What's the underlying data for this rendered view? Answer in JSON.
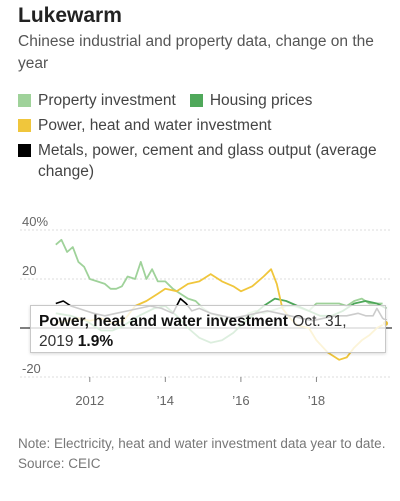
{
  "header": {
    "title": "Lukewarm",
    "subtitle": "Chinese industrial and property data, change on the year"
  },
  "legend": [
    {
      "label": "Property investment",
      "color": "#9fd29a"
    },
    {
      "label": "Housing prices",
      "color": "#4fa85a"
    },
    {
      "label": "Power, heat and water investment",
      "color": "#f0c63c"
    },
    {
      "label": "Metals, power, cement and glass output (average change)",
      "color": "#000000"
    }
  ],
  "tooltip": {
    "series": "Power, heat and water investment",
    "date": "Oct. 31, 2019",
    "value": "1.9%"
  },
  "footer": {
    "note": "Note: Electricity, heat and water investment data year to date.",
    "source": "Source: CEIC"
  },
  "chart_data": {
    "type": "line",
    "y_ticks": [
      "40%",
      "20",
      "",
      "-20"
    ],
    "x_ticks": [
      "2012",
      "’14",
      "’16",
      "’18"
    ],
    "ylim": [
      -20,
      40
    ],
    "xlim": [
      2011.0,
      2020.0
    ],
    "series": [
      {
        "name": "Property investment",
        "color": "#9fd29a",
        "points": [
          [
            2011.1,
            34
          ],
          [
            2011.25,
            36
          ],
          [
            2011.4,
            31
          ],
          [
            2011.55,
            33
          ],
          [
            2011.7,
            27
          ],
          [
            2011.85,
            25
          ],
          [
            2012.0,
            20
          ],
          [
            2012.2,
            19
          ],
          [
            2012.4,
            18
          ],
          [
            2012.55,
            16
          ],
          [
            2012.7,
            16
          ],
          [
            2012.85,
            17
          ],
          [
            2013.0,
            21
          ],
          [
            2013.2,
            20
          ],
          [
            2013.35,
            27
          ],
          [
            2013.5,
            20
          ],
          [
            2013.65,
            24
          ],
          [
            2013.8,
            19
          ],
          [
            2014.0,
            19
          ],
          [
            2014.2,
            16
          ],
          [
            2014.4,
            14
          ],
          [
            2014.6,
            12
          ],
          [
            2014.8,
            11
          ],
          [
            2015.0,
            8
          ],
          [
            2015.2,
            6
          ],
          [
            2015.4,
            5
          ],
          [
            2015.6,
            3
          ],
          [
            2015.8,
            2
          ],
          [
            2016.0,
            1
          ],
          [
            2016.2,
            6
          ],
          [
            2016.4,
            7
          ],
          [
            2016.6,
            6
          ],
          [
            2016.8,
            7
          ],
          [
            2017.0,
            8
          ],
          [
            2017.2,
            9
          ],
          [
            2017.4,
            9
          ],
          [
            2017.6,
            8
          ],
          [
            2017.8,
            7
          ],
          [
            2018.0,
            10
          ],
          [
            2018.2,
            10
          ],
          [
            2018.4,
            10
          ],
          [
            2018.6,
            10
          ],
          [
            2018.8,
            9
          ],
          [
            2019.0,
            11
          ],
          [
            2019.2,
            12
          ],
          [
            2019.4,
            10
          ],
          [
            2019.6,
            10
          ],
          [
            2019.75,
            10
          ]
        ]
      },
      {
        "name": "Housing prices",
        "color": "#4fa85a",
        "points": [
          [
            2011.1,
            6
          ],
          [
            2011.5,
            5
          ],
          [
            2011.9,
            3
          ],
          [
            2012.3,
            -1
          ],
          [
            2012.6,
            -1
          ],
          [
            2012.9,
            1
          ],
          [
            2013.3,
            5
          ],
          [
            2013.7,
            8
          ],
          [
            2014.0,
            9
          ],
          [
            2014.3,
            5
          ],
          [
            2014.6,
            0
          ],
          [
            2014.9,
            -4
          ],
          [
            2015.2,
            -6
          ],
          [
            2015.5,
            -5
          ],
          [
            2015.8,
            -2
          ],
          [
            2016.0,
            1
          ],
          [
            2016.3,
            5
          ],
          [
            2016.6,
            9
          ],
          [
            2016.9,
            12
          ],
          [
            2017.2,
            11
          ],
          [
            2017.5,
            9
          ],
          [
            2017.8,
            7
          ],
          [
            2018.1,
            5
          ],
          [
            2018.4,
            5
          ],
          [
            2018.7,
            7
          ],
          [
            2019.0,
            10
          ],
          [
            2019.3,
            11
          ],
          [
            2019.6,
            10
          ],
          [
            2019.85,
            8
          ]
        ]
      },
      {
        "name": "Power, heat and water investment",
        "color": "#f0c63c",
        "points": [
          [
            2011.1,
            2
          ],
          [
            2011.4,
            3
          ],
          [
            2011.7,
            4
          ],
          [
            2012.0,
            3
          ],
          [
            2012.3,
            4
          ],
          [
            2012.6,
            2
          ],
          [
            2012.9,
            3
          ],
          [
            2013.2,
            9
          ],
          [
            2013.5,
            11
          ],
          [
            2013.8,
            14
          ],
          [
            2014.0,
            16
          ],
          [
            2014.3,
            15
          ],
          [
            2014.6,
            18
          ],
          [
            2014.9,
            19
          ],
          [
            2015.2,
            22
          ],
          [
            2015.5,
            19
          ],
          [
            2015.8,
            17
          ],
          [
            2016.0,
            15
          ],
          [
            2016.3,
            17
          ],
          [
            2016.6,
            21
          ],
          [
            2016.8,
            24
          ],
          [
            2016.95,
            18
          ],
          [
            2017.1,
            8
          ],
          [
            2017.3,
            4
          ],
          [
            2017.5,
            1
          ],
          [
            2017.8,
            0
          ],
          [
            2018.0,
            -5
          ],
          [
            2018.3,
            -10
          ],
          [
            2018.6,
            -13
          ],
          [
            2018.8,
            -12
          ],
          [
            2019.0,
            -8
          ],
          [
            2019.2,
            -5
          ],
          [
            2019.4,
            -3
          ],
          [
            2019.6,
            0
          ],
          [
            2019.83,
            1.9
          ]
        ]
      },
      {
        "name": "Metals, power, cement and glass output (average change)",
        "color": "#000000",
        "points": [
          [
            2011.1,
            10
          ],
          [
            2011.3,
            11
          ],
          [
            2011.5,
            9
          ],
          [
            2011.7,
            8
          ],
          [
            2011.9,
            7
          ],
          [
            2012.1,
            6
          ],
          [
            2012.4,
            5
          ],
          [
            2012.7,
            6
          ],
          [
            2013.0,
            7
          ],
          [
            2013.3,
            8
          ],
          [
            2013.6,
            9
          ],
          [
            2013.9,
            8
          ],
          [
            2014.2,
            6
          ],
          [
            2014.4,
            12
          ],
          [
            2014.55,
            10
          ],
          [
            2014.7,
            7
          ],
          [
            2014.9,
            8
          ],
          [
            2015.2,
            6
          ],
          [
            2015.5,
            5
          ],
          [
            2015.8,
            4
          ],
          [
            2016.1,
            5
          ],
          [
            2016.4,
            6
          ],
          [
            2016.7,
            7
          ],
          [
            2017.0,
            6
          ],
          [
            2017.3,
            5
          ],
          [
            2017.6,
            4
          ],
          [
            2017.9,
            3
          ],
          [
            2018.2,
            4
          ],
          [
            2018.5,
            5
          ],
          [
            2018.8,
            5
          ],
          [
            2019.1,
            6
          ],
          [
            2019.3,
            5
          ],
          [
            2019.5,
            5
          ],
          [
            2019.6,
            8
          ],
          [
            2019.75,
            4
          ],
          [
            2019.85,
            3
          ]
        ]
      }
    ]
  }
}
